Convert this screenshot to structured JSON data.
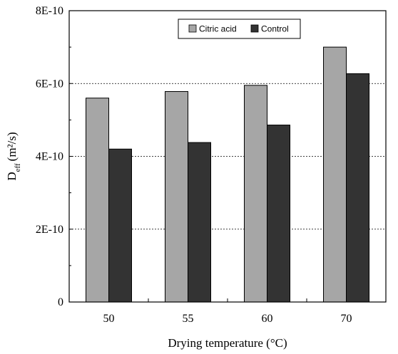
{
  "chart_data": {
    "type": "bar",
    "categories": [
      "50",
      "55",
      "60",
      "70"
    ],
    "series": [
      {
        "name": "Citric acid",
        "color": "#a6a6a6",
        "values": [
          5.6e-10,
          5.78e-10,
          5.95e-10,
          7e-10
        ]
      },
      {
        "name": "Control",
        "color": "#333333",
        "values": [
          4.2e-10,
          4.38e-10,
          4.86e-10,
          6.27e-10
        ]
      }
    ],
    "xlabel": "Drying temperature (°C)",
    "ylabel": {
      "main": "D",
      "sub": "eff",
      "unit": "(m²/s)"
    },
    "ylim": [
      0,
      8e-10
    ],
    "yticks": [
      0,
      2e-10,
      4e-10,
      6e-10,
      8e-10
    ],
    "ytick_labels": [
      "0",
      "2E-10",
      "4E-10",
      "6E-10",
      "8E-10"
    ],
    "grid": "horizontal-dashed",
    "legend_position": "top-right"
  }
}
